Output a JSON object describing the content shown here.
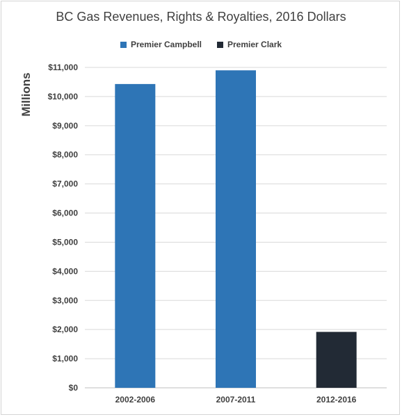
{
  "chart_data": {
    "type": "bar",
    "title": "BC Gas Revenues, Rights & Royalties, 2016 Dollars",
    "ylabel": "Millions",
    "xlabel": "",
    "categories": [
      "2002-2006",
      "2007-2011",
      "2012-2016"
    ],
    "values": [
      10430,
      10900,
      1920
    ],
    "bar_colors": [
      "#2e75b6",
      "#2e75b6",
      "#222a35"
    ],
    "ylim": [
      0,
      11000
    ],
    "yticks": [
      0,
      1000,
      2000,
      3000,
      4000,
      5000,
      6000,
      7000,
      8000,
      9000,
      10000,
      11000
    ],
    "ytick_labels": [
      "$0",
      "$1,000",
      "$2,000",
      "$3,000",
      "$4,000",
      "$5,000",
      "$6,000",
      "$7,000",
      "$8,000",
      "$9,000",
      "$10,000",
      "$11,000"
    ],
    "grid": true,
    "legend_position": "top",
    "legend": [
      {
        "name": "Premier Campbell",
        "color": "#2e75b6"
      },
      {
        "name": "Premier Clark",
        "color": "#222a35"
      }
    ]
  }
}
